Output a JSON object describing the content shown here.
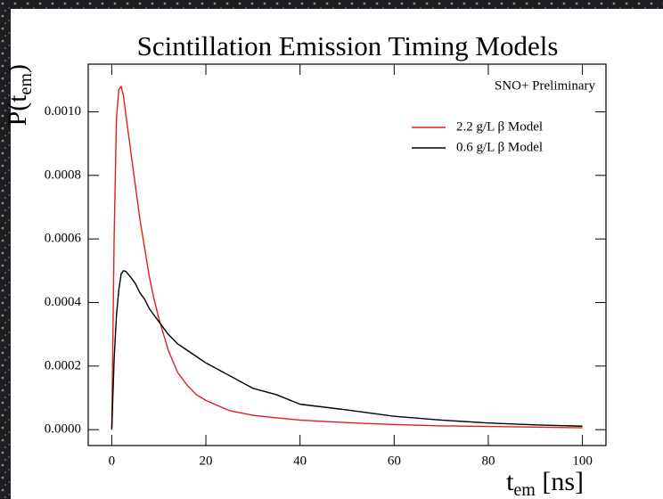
{
  "chart_data": {
    "type": "line",
    "title": "Scintillation Emission Timing Models",
    "annotation": "SNO+ Preliminary",
    "xlabel": {
      "main": "t",
      "sub": "em",
      "end": " [ns]"
    },
    "ylabel": {
      "main": "P(t",
      "sub": "em",
      "end": ")"
    },
    "x": [
      0,
      0.5,
      1,
      1.5,
      2,
      2.5,
      3,
      4,
      5,
      6,
      7,
      8,
      9,
      10,
      12,
      14,
      16,
      18,
      20,
      25,
      30,
      35,
      40,
      50,
      60,
      70,
      80,
      90,
      100
    ],
    "series": [
      {
        "name": "2.2 g/L β Model",
        "color": "#e0201b",
        "values": [
          0,
          0.0006,
          0.00098,
          0.00107,
          0.00108,
          0.00105,
          0.00099,
          0.00088,
          0.00077,
          0.00066,
          0.00057,
          0.00048,
          0.00041,
          0.00035,
          0.00025,
          0.00018,
          0.00014,
          0.00011,
          9.2e-05,
          6e-05,
          4.5e-05,
          3.7e-05,
          3e-05,
          2.2e-05,
          1.6e-05,
          1.2e-05,
          1e-05,
          8e-06,
          6e-06
        ]
      },
      {
        "name": "0.6 g/L β Model",
        "color": "#000000",
        "values": [
          0,
          0.00022,
          0.00036,
          0.00044,
          0.00049,
          0.0005,
          0.000498,
          0.00048,
          0.00046,
          0.00043,
          0.00041,
          0.00038,
          0.00036,
          0.00034,
          0.0003,
          0.00027,
          0.00025,
          0.00023,
          0.00021,
          0.00017,
          0.00013,
          0.00011,
          8e-05,
          6.2e-05,
          4.2e-05,
          3e-05,
          2.1e-05,
          1.5e-05,
          1.1e-05
        ]
      }
    ],
    "xlim": [
      -5,
      105
    ],
    "ylim": [
      -5e-05,
      0.00115
    ],
    "xticks": [
      0,
      20,
      40,
      60,
      80,
      100
    ],
    "yticks": [
      {
        "value": 0,
        "label": "0.0000"
      },
      {
        "value": 0.0002,
        "label": "0.0002"
      },
      {
        "value": 0.0004,
        "label": "0.0004"
      },
      {
        "value": 0.0006,
        "label": "0.0006"
      },
      {
        "value": 0.0008,
        "label": "0.0008"
      },
      {
        "value": 0.001,
        "label": "0.0010"
      }
    ],
    "grid": false
  }
}
